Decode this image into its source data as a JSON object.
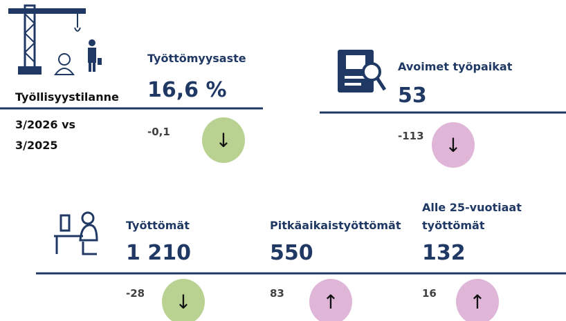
{
  "header": {
    "title": "Työllisyystilanne",
    "period": [
      "3/2026 vs",
      "3/2025"
    ]
  },
  "kpis": [
    {
      "label": [
        "Työttömyysaste"
      ],
      "value": "16,6 %",
      "change": "-0,1",
      "arrow": "↓",
      "color": "#b9d292"
    },
    {
      "label": [
        "Avoimet työpaikat"
      ],
      "value": "53",
      "change": "-113",
      "arrow": "↓",
      "color": "#dfb6d8"
    },
    {
      "label": [
        "Työttömät"
      ],
      "value": "1 210",
      "change": "-28",
      "arrow": "↓",
      "color": "#b9d292"
    },
    {
      "label": [
        "Pitkäaikaistyöttömät"
      ],
      "value": "550",
      "change": "83",
      "arrow": "↑",
      "color": "#dfb6d8"
    },
    {
      "label": [
        "Alle 25-vuotiaat",
        "työttömät"
      ],
      "value": "132",
      "change": "16",
      "arrow": "↑",
      "color": "#dfb6d8"
    }
  ]
}
